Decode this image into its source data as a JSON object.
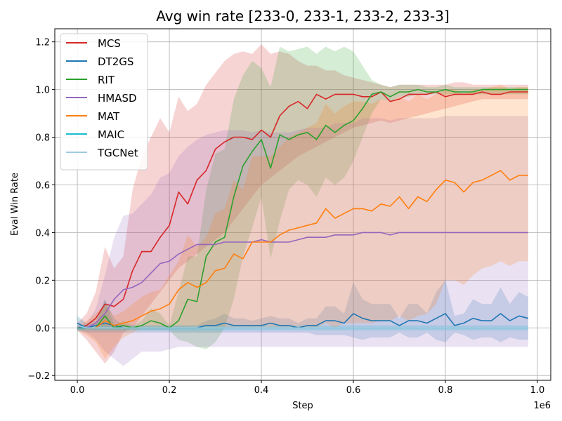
{
  "chart_data": {
    "type": "line",
    "title": "Avg win rate [233-0, 233-1, 233-2, 233-3]",
    "xlabel": "Step",
    "ylabel": "Eval Win Rate",
    "x_scale_label": "1e6",
    "xlim": [
      -0.049,
      1.029
    ],
    "ylim": [
      -0.22,
      1.255
    ],
    "xticks": [
      0.0,
      0.2,
      0.4,
      0.6,
      0.8,
      1.0
    ],
    "xtick_labels": [
      "0.0",
      "0.2",
      "0.4",
      "0.6",
      "0.8",
      "1.0"
    ],
    "yticks": [
      -0.2,
      0.0,
      0.2,
      0.4,
      0.6,
      0.8,
      1.0,
      1.2
    ],
    "ytick_labels": [
      "−0.2",
      "0.0",
      "0.2",
      "0.4",
      "0.6",
      "0.8",
      "1.0",
      "1.2"
    ],
    "grid": true,
    "legend_position": "upper-left",
    "x": [
      0.0,
      0.02,
      0.04,
      0.06,
      0.08,
      0.1,
      0.12,
      0.14,
      0.16,
      0.18,
      0.2,
      0.22,
      0.24,
      0.26,
      0.28,
      0.3,
      0.32,
      0.34,
      0.36,
      0.38,
      0.4,
      0.42,
      0.44,
      0.46,
      0.48,
      0.5,
      0.52,
      0.54,
      0.56,
      0.58,
      0.6,
      0.62,
      0.64,
      0.66,
      0.68,
      0.7,
      0.72,
      0.74,
      0.76,
      0.78,
      0.8,
      0.82,
      0.84,
      0.86,
      0.88,
      0.9,
      0.92,
      0.94,
      0.96,
      0.98
    ],
    "series": [
      {
        "name": "MCS",
        "color": "#d62728",
        "values": [
          0.0,
          0.01,
          0.04,
          0.1,
          0.09,
          0.12,
          0.24,
          0.32,
          0.32,
          0.38,
          0.43,
          0.57,
          0.52,
          0.62,
          0.66,
          0.75,
          0.78,
          0.8,
          0.8,
          0.79,
          0.83,
          0.8,
          0.89,
          0.93,
          0.95,
          0.92,
          0.98,
          0.96,
          0.98,
          0.98,
          0.98,
          0.97,
          0.97,
          0.99,
          0.95,
          0.96,
          0.98,
          0.98,
          0.98,
          0.99,
          0.97,
          0.98,
          0.98,
          0.98,
          0.99,
          0.98,
          0.98,
          0.99,
          0.99,
          0.99
        ],
        "lower": [
          -0.01,
          -0.05,
          -0.1,
          -0.15,
          -0.1,
          -0.02,
          0.0,
          0.05,
          0.1,
          0.15,
          0.2,
          0.25,
          0.28,
          0.31,
          0.34,
          0.37,
          0.4,
          0.45,
          0.5,
          0.55,
          0.6,
          0.63,
          0.66,
          0.69,
          0.72,
          0.74,
          0.76,
          0.78,
          0.8,
          0.82,
          0.84,
          0.85,
          0.86,
          0.87,
          0.86,
          0.87,
          0.88,
          0.89,
          0.9,
          0.91,
          0.92,
          0.93,
          0.94,
          0.95,
          0.96,
          0.96,
          0.96,
          0.96,
          0.96,
          0.96
        ],
        "upper": [
          0.02,
          0.06,
          0.15,
          0.34,
          0.25,
          0.3,
          0.58,
          0.72,
          0.8,
          0.88,
          0.82,
          0.97,
          0.91,
          0.94,
          1.02,
          1.07,
          1.12,
          1.15,
          1.16,
          1.15,
          1.19,
          1.15,
          1.16,
          1.15,
          1.12,
          1.1,
          1.1,
          1.08,
          1.08,
          1.06,
          1.05,
          1.04,
          1.03,
          1.02,
          1.01,
          1.02,
          1.02,
          1.02,
          1.02,
          1.02,
          1.02,
          1.03,
          1.03,
          1.02,
          1.02,
          1.02,
          1.02,
          1.02,
          1.02,
          1.02
        ]
      },
      {
        "name": "DT2GS",
        "color": "#1f77b4",
        "values": [
          0.02,
          0.0,
          0.01,
          0.02,
          0.01,
          0.0,
          0.0,
          0.0,
          0.0,
          0.0,
          0.0,
          0.0,
          0.0,
          0.0,
          0.01,
          0.01,
          0.02,
          0.01,
          0.01,
          0.01,
          0.01,
          0.02,
          0.01,
          0.01,
          0.0,
          0.01,
          0.01,
          0.03,
          0.03,
          0.02,
          0.06,
          0.04,
          0.03,
          0.03,
          0.03,
          0.01,
          0.03,
          0.03,
          0.02,
          0.04,
          0.06,
          0.01,
          0.02,
          0.04,
          0.03,
          0.03,
          0.06,
          0.03,
          0.05,
          0.04
        ],
        "lower": [
          -0.01,
          -0.02,
          -0.02,
          -0.02,
          -0.02,
          -0.02,
          -0.02,
          -0.02,
          -0.02,
          -0.02,
          -0.02,
          -0.02,
          -0.02,
          -0.02,
          -0.02,
          -0.02,
          -0.02,
          -0.02,
          -0.02,
          -0.02,
          -0.02,
          -0.02,
          -0.02,
          -0.02,
          -0.02,
          -0.02,
          -0.03,
          -0.03,
          -0.03,
          -0.03,
          -0.04,
          -0.05,
          -0.04,
          -0.04,
          -0.04,
          -0.02,
          -0.04,
          -0.04,
          -0.02,
          -0.05,
          -0.06,
          -0.02,
          -0.03,
          -0.05,
          -0.04,
          -0.04,
          -0.06,
          -0.04,
          -0.05,
          -0.05
        ],
        "upper": [
          0.05,
          0.02,
          0.03,
          0.12,
          0.04,
          0.01,
          0.01,
          0.01,
          0.01,
          0.01,
          0.01,
          0.01,
          0.01,
          0.01,
          0.03,
          0.04,
          0.06,
          0.04,
          0.04,
          0.03,
          0.04,
          0.05,
          0.04,
          0.04,
          0.02,
          0.04,
          0.04,
          0.09,
          0.09,
          0.06,
          0.19,
          0.12,
          0.1,
          0.1,
          0.1,
          0.04,
          0.1,
          0.1,
          0.06,
          0.15,
          0.2,
          0.05,
          0.06,
          0.12,
          0.1,
          0.1,
          0.17,
          0.1,
          0.15,
          0.13
        ]
      },
      {
        "name": "RIT",
        "color": "#2ca02c",
        "values": [
          0.0,
          0.0,
          0.0,
          0.05,
          0.0,
          0.01,
          0.0,
          0.01,
          0.03,
          0.02,
          0.0,
          0.03,
          0.12,
          0.11,
          0.3,
          0.36,
          0.38,
          0.55,
          0.68,
          0.74,
          0.79,
          0.67,
          0.81,
          0.79,
          0.81,
          0.82,
          0.79,
          0.85,
          0.82,
          0.85,
          0.87,
          0.92,
          0.98,
          0.99,
          0.97,
          0.99,
          0.99,
          1.0,
          0.99,
          0.99,
          1.0,
          0.99,
          0.99,
          0.99,
          1.0,
          1.0,
          1.0,
          1.0,
          1.0,
          1.0
        ],
        "lower": [
          -0.01,
          -0.01,
          -0.01,
          -0.01,
          -0.01,
          -0.01,
          -0.01,
          -0.01,
          -0.01,
          -0.01,
          -0.01,
          -0.05,
          -0.06,
          -0.08,
          -0.09,
          -0.06,
          0.0,
          0.12,
          0.3,
          0.42,
          0.55,
          0.29,
          0.45,
          0.58,
          0.62,
          0.6,
          0.55,
          0.63,
          0.6,
          0.63,
          0.7,
          0.8,
          0.9,
          0.96,
          0.95,
          0.97,
          0.97,
          0.98,
          0.98,
          0.98,
          0.98,
          0.98,
          0.98,
          0.98,
          0.98,
          0.98,
          0.98,
          0.98,
          0.98,
          0.98
        ],
        "upper": [
          0.01,
          0.01,
          0.01,
          0.12,
          0.01,
          0.03,
          0.01,
          0.03,
          0.08,
          0.06,
          0.01,
          0.15,
          0.3,
          0.3,
          0.58,
          0.73,
          0.75,
          0.96,
          1.06,
          1.12,
          1.09,
          1.01,
          1.18,
          1.16,
          1.17,
          1.18,
          1.15,
          1.18,
          1.16,
          1.18,
          1.16,
          1.1,
          1.04,
          1.02,
          1.01,
          1.02,
          1.02,
          1.02,
          1.01,
          1.01,
          1.02,
          1.01,
          1.01,
          1.01,
          1.01,
          1.01,
          1.01,
          1.01,
          1.01,
          1.01
        ]
      },
      {
        "name": "HMASD",
        "color": "#9467bd",
        "values": [
          0.0,
          0.0,
          0.02,
          0.06,
          0.12,
          0.16,
          0.17,
          0.19,
          0.23,
          0.27,
          0.28,
          0.31,
          0.33,
          0.35,
          0.35,
          0.35,
          0.36,
          0.36,
          0.36,
          0.36,
          0.37,
          0.36,
          0.36,
          0.36,
          0.37,
          0.38,
          0.38,
          0.38,
          0.39,
          0.39,
          0.39,
          0.4,
          0.4,
          0.4,
          0.39,
          0.4,
          0.4,
          0.4,
          0.4,
          0.4,
          0.4,
          0.4,
          0.4,
          0.4,
          0.4,
          0.4,
          0.4,
          0.4,
          0.4,
          0.4
        ],
        "lower": [
          -0.01,
          -0.02,
          -0.05,
          -0.1,
          -0.13,
          -0.16,
          -0.13,
          -0.1,
          -0.1,
          -0.1,
          -0.09,
          -0.08,
          -0.08,
          -0.08,
          -0.08,
          -0.08,
          -0.08,
          -0.08,
          -0.08,
          -0.08,
          -0.08,
          -0.08,
          -0.08,
          -0.08,
          -0.08,
          -0.08,
          -0.08,
          -0.08,
          -0.08,
          -0.08,
          -0.08,
          -0.08,
          -0.08,
          -0.08,
          -0.08,
          -0.08,
          -0.08,
          -0.08,
          -0.08,
          -0.08,
          -0.08,
          -0.08,
          -0.08,
          -0.08,
          -0.08,
          -0.08,
          -0.08,
          -0.08,
          -0.08,
          -0.08
        ],
        "upper": [
          0.01,
          0.02,
          0.08,
          0.22,
          0.38,
          0.47,
          0.48,
          0.52,
          0.56,
          0.63,
          0.65,
          0.72,
          0.76,
          0.79,
          0.81,
          0.82,
          0.83,
          0.83,
          0.83,
          0.82,
          0.83,
          0.82,
          0.82,
          0.82,
          0.83,
          0.84,
          0.84,
          0.84,
          0.86,
          0.86,
          0.86,
          0.88,
          0.88,
          0.88,
          0.87,
          0.88,
          0.88,
          0.88,
          0.88,
          0.88,
          0.89,
          0.89,
          0.89,
          0.89,
          0.89,
          0.89,
          0.89,
          0.89,
          0.89,
          0.89
        ]
      },
      {
        "name": "MAT",
        "color": "#ff7f0e",
        "values": [
          0.0,
          0.0,
          0.0,
          0.03,
          0.01,
          0.02,
          0.03,
          0.05,
          0.07,
          0.08,
          0.1,
          0.16,
          0.19,
          0.17,
          0.19,
          0.24,
          0.25,
          0.31,
          0.29,
          0.36,
          0.36,
          0.36,
          0.39,
          0.41,
          0.42,
          0.43,
          0.44,
          0.5,
          0.46,
          0.48,
          0.5,
          0.5,
          0.49,
          0.52,
          0.51,
          0.55,
          0.5,
          0.55,
          0.53,
          0.58,
          0.62,
          0.61,
          0.57,
          0.61,
          0.62,
          0.64,
          0.66,
          0.62,
          0.64,
          0.64
        ],
        "lower": [
          -0.01,
          -0.03,
          -0.06,
          -0.13,
          -0.08,
          -0.04,
          -0.02,
          0.0,
          0.0,
          0.0,
          0.0,
          0.0,
          0.0,
          0.0,
          0.0,
          0.0,
          0.0,
          0.0,
          0.0,
          0.0,
          0.0,
          0.0,
          0.0,
          0.0,
          0.0,
          0.0,
          0.0,
          0.02,
          0.0,
          0.02,
          0.02,
          0.02,
          0.02,
          0.03,
          0.03,
          0.05,
          0.03,
          0.05,
          0.06,
          0.1,
          0.2,
          0.2,
          0.18,
          0.22,
          0.25,
          0.26,
          0.28,
          0.26,
          0.28,
          0.28
        ],
        "upper": [
          0.01,
          0.03,
          0.06,
          0.1,
          0.05,
          0.07,
          0.1,
          0.13,
          0.15,
          0.16,
          0.22,
          0.28,
          0.39,
          0.34,
          0.38,
          0.48,
          0.5,
          0.62,
          0.58,
          0.72,
          0.72,
          0.72,
          0.76,
          0.8,
          0.82,
          0.84,
          0.86,
          0.94,
          0.9,
          0.93,
          0.95,
          0.95,
          0.94,
          0.96,
          0.95,
          0.97,
          0.95,
          0.98,
          0.96,
          0.98,
          1.0,
          1.0,
          0.98,
          1.0,
          1.0,
          1.01,
          1.02,
          1.0,
          1.01,
          1.01
        ]
      },
      {
        "name": "MAIC",
        "color": "#17becf",
        "values": [
          0.0,
          0.0,
          0.0,
          0.0,
          0.0,
          0.0,
          0.0,
          0.0,
          0.0,
          0.0,
          0.0,
          0.0,
          0.0,
          0.0,
          0.0,
          0.0,
          0.0,
          0.0,
          0.0,
          0.0,
          0.0,
          0.0,
          0.0,
          0.0,
          0.0,
          0.0,
          0.0,
          0.0,
          0.0,
          0.0,
          0.0,
          0.0,
          0.0,
          0.0,
          0.0,
          0.0,
          0.0,
          0.0,
          0.0,
          0.0,
          0.0,
          0.0,
          0.0,
          0.0,
          0.0,
          0.0,
          0.0,
          0.0,
          0.0,
          0.0
        ],
        "lower": [
          -0.01,
          -0.01,
          -0.01,
          -0.01,
          -0.01,
          -0.01,
          -0.01,
          -0.01,
          -0.01,
          -0.01,
          -0.01,
          -0.01,
          -0.01,
          -0.01,
          -0.01,
          -0.01,
          -0.01,
          -0.01,
          -0.01,
          -0.01,
          -0.01,
          -0.01,
          -0.01,
          -0.01,
          -0.01,
          -0.01,
          -0.01,
          -0.01,
          -0.01,
          -0.01,
          -0.01,
          -0.01,
          -0.01,
          -0.01,
          -0.01,
          -0.01,
          -0.01,
          -0.01,
          -0.01,
          -0.01,
          -0.01,
          -0.01,
          -0.01,
          -0.01,
          -0.01,
          -0.01,
          -0.01,
          -0.01,
          -0.01,
          -0.01
        ],
        "upper": [
          0.01,
          0.01,
          0.01,
          0.01,
          0.01,
          0.01,
          0.01,
          0.01,
          0.01,
          0.01,
          0.01,
          0.01,
          0.01,
          0.01,
          0.01,
          0.01,
          0.01,
          0.01,
          0.01,
          0.01,
          0.01,
          0.01,
          0.01,
          0.01,
          0.01,
          0.01,
          0.01,
          0.01,
          0.01,
          0.01,
          0.01,
          0.01,
          0.01,
          0.01,
          0.01,
          0.01,
          0.01,
          0.01,
          0.01,
          0.01,
          0.01,
          0.01,
          0.01,
          0.01,
          0.01,
          0.01,
          0.01,
          0.01,
          0.01,
          0.01
        ]
      },
      {
        "name": "TGCNet",
        "color": "#9ecae1",
        "values": [
          0.01,
          0.0,
          0.0,
          0.0,
          0.0,
          0.0,
          0.0,
          0.0,
          0.0,
          0.0,
          0.0,
          0.0,
          0.0,
          0.0,
          0.0,
          0.0,
          0.0,
          0.0,
          0.0,
          0.0,
          0.0,
          0.0,
          0.0,
          0.0,
          0.0,
          0.0,
          0.0,
          0.0,
          0.0,
          0.0,
          0.0,
          0.0,
          0.0,
          0.0,
          0.0,
          0.0,
          0.0,
          0.0,
          0.0,
          0.0,
          0.0,
          0.0,
          0.0,
          0.0,
          0.0,
          0.0,
          0.0,
          0.0,
          0.0,
          0.0
        ],
        "lower": [
          -0.02,
          -0.01,
          -0.01,
          -0.01,
          -0.01,
          -0.01,
          -0.01,
          -0.01,
          -0.01,
          -0.01,
          -0.01,
          -0.01,
          -0.01,
          -0.01,
          -0.01,
          -0.01,
          -0.01,
          -0.01,
          -0.01,
          -0.01,
          -0.01,
          -0.01,
          -0.01,
          -0.01,
          -0.01,
          -0.01,
          -0.01,
          -0.01,
          -0.01,
          -0.01,
          -0.01,
          -0.01,
          -0.01,
          -0.01,
          -0.01,
          -0.01,
          -0.01,
          -0.01,
          -0.01,
          -0.01,
          -0.01,
          -0.01,
          -0.01,
          -0.01,
          -0.01,
          -0.01,
          -0.01,
          -0.01,
          -0.01,
          -0.01
        ],
        "upper": [
          0.04,
          0.01,
          0.01,
          0.01,
          0.01,
          0.01,
          0.01,
          0.01,
          0.01,
          0.01,
          0.01,
          0.01,
          0.01,
          0.01,
          0.01,
          0.01,
          0.01,
          0.01,
          0.01,
          0.01,
          0.01,
          0.01,
          0.01,
          0.01,
          0.01,
          0.01,
          0.01,
          0.01,
          0.01,
          0.01,
          0.01,
          0.01,
          0.01,
          0.01,
          0.01,
          0.01,
          0.01,
          0.01,
          0.01,
          0.01,
          0.01,
          0.01,
          0.01,
          0.01,
          0.01,
          0.01,
          0.01,
          0.01,
          0.01,
          0.01
        ]
      }
    ]
  }
}
